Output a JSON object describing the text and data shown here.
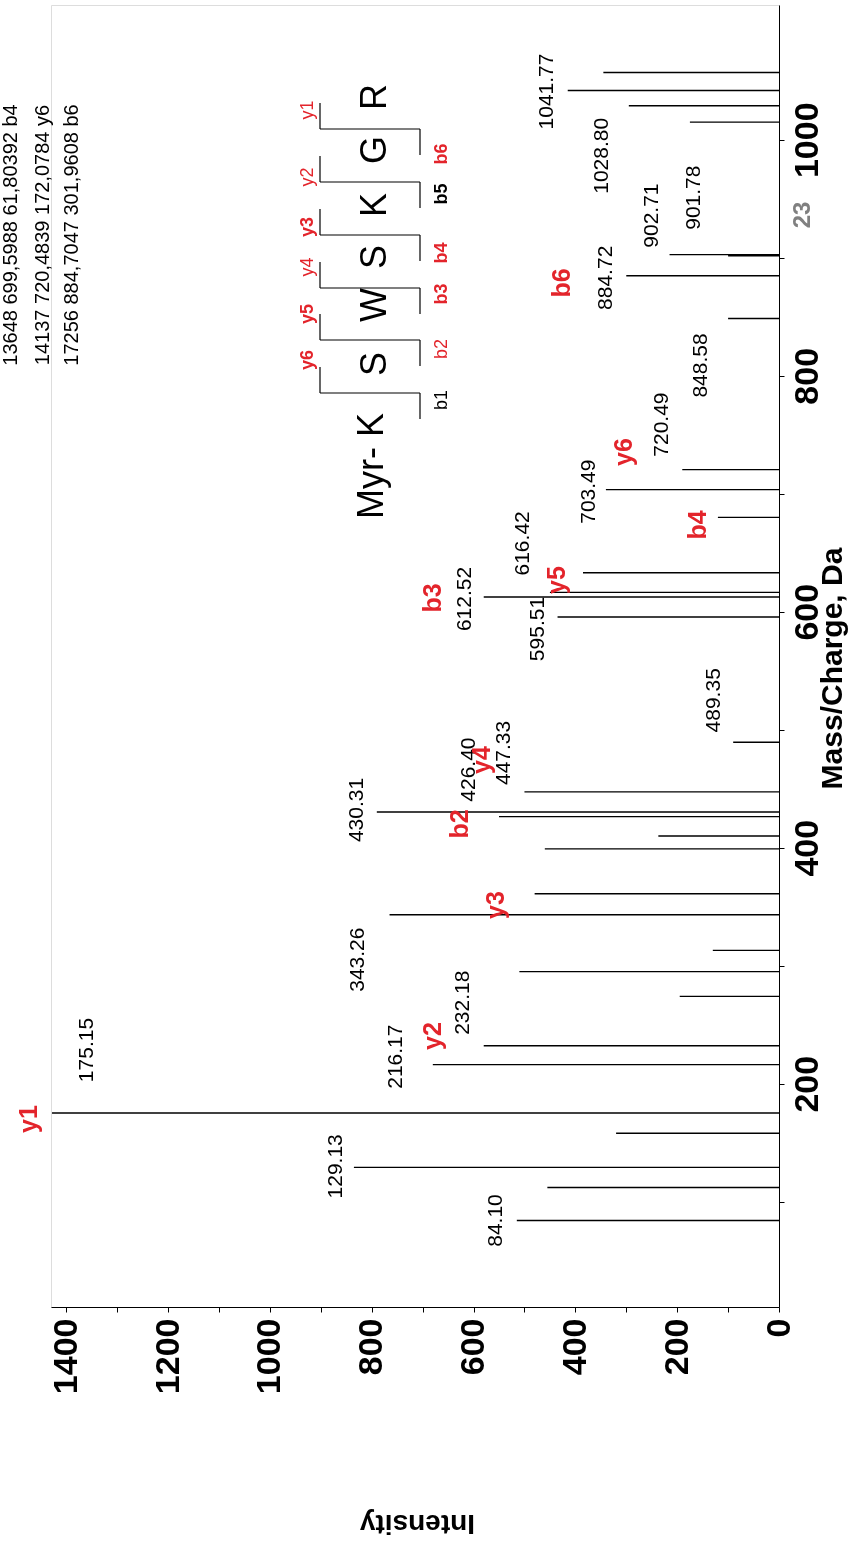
{
  "chart_data": {
    "type": "bar",
    "orientation": "horizontal",
    "xlabel": "Intensity",
    "ylabel": "Mass/Charge, Da",
    "x": [
      84.1,
      112,
      129.13,
      158,
      175.15,
      216.17,
      232.18,
      274,
      295,
      313,
      343.26,
      361,
      399,
      410,
      426.4,
      430.31,
      447.33,
      489.35,
      595.51,
      612.52,
      616.42,
      633,
      680,
      703.49,
      720.49,
      848.58,
      884.72,
      901.78,
      902.71,
      1015,
      1028.8,
      1041.77,
      1057
    ],
    "series": [
      {
        "color": "#000000",
        "values": [
          515,
          455,
          835,
          320,
          1428,
          680,
          580,
          195,
          510,
          130,
          765,
          480,
          460,
          237,
          550,
          790,
          500,
          90,
          435,
          580,
          450,
          385,
          120,
          340,
          190,
          100,
          300,
          100,
          215,
          175,
          295,
          415,
          345
        ]
      }
    ],
    "xlim": [
      1430,
      0
    ],
    "xticks": [
      0,
      {
        "value": 100,
        "label": null
      },
      200,
      {
        "value": 300,
        "label": null
      },
      400,
      {
        "value": 500,
        "label": null
      },
      600,
      {
        "value": 700,
        "label": null
      },
      800,
      {
        "value": 900,
        "label": null
      },
      1000,
      {
        "value": 1100,
        "label": null
      },
      1200,
      {
        "value": 1300,
        "label": null
      },
      1400
    ],
    "ylim": [
      15,
      1110
    ],
    "yticks": [
      {
        "value": 100,
        "label": null
      },
      200,
      {
        "value": 300,
        "label": null
      },
      400,
      {
        "value": 500,
        "label": null
      },
      600,
      {
        "value": 700,
        "label": null
      },
      800,
      {
        "value": 900,
        "label": null
      },
      1000
    ],
    "annotations": [
      {
        "text": "84.10",
        "x": 515,
        "y": 84.1
      },
      {
        "text": "129.13",
        "x": 835,
        "y": 129.13
      },
      {
        "text": "175.15",
        "x": 1428,
        "y": 175.15
      },
      {
        "text": "216.17",
        "x": 680,
        "y": 216.17
      },
      {
        "text": "232.18",
        "x": 580,
        "y": 232.18
      },
      {
        "text": "343.26",
        "x": 765,
        "y": 343.26
      },
      {
        "text": "426.40",
        "x": 550,
        "y": 426.4
      },
      {
        "text": "430.31",
        "x": 790,
        "y": 430.31
      },
      {
        "text": "447.33",
        "x": 500,
        "y": 447.33
      },
      {
        "text": "489.35",
        "x": 90,
        "y": 489.35
      },
      {
        "text": "595.51",
        "x": 435,
        "y": 595.51
      },
      {
        "text": "612.52",
        "x": 580,
        "y": 612.52
      },
      {
        "text": "616.42",
        "x": 450,
        "y": 616.42
      },
      {
        "text": "703.49",
        "x": 340,
        "y": 703.49
      },
      {
        "text": "720.49",
        "x": 190,
        "y": 720.49
      },
      {
        "text": "848.58",
        "x": 100,
        "y": 848.58
      },
      {
        "text": "884.72",
        "x": 300,
        "y": 884.72
      },
      {
        "text": "901.78",
        "x": 100,
        "y": 901.78
      },
      {
        "text": "902.71",
        "x": 215,
        "y": 902.71
      },
      {
        "text": "1028.80",
        "x": 295,
        "y": 1028.8
      },
      {
        "text": "1041.77",
        "x": 415,
        "y": 1041.77
      },
      "y1",
      "y2",
      "y3",
      "b2",
      "y4",
      "b3",
      "y5",
      "b4",
      "y6",
      "b6",
      "13648 699,5988 61,80392 b4",
      "14137 720,4839 172,0784 y6",
      "17256 884,7047 301,9608 b6",
      "23",
      "Myr- K",
      "S",
      "W",
      "S",
      "K",
      "G",
      "R",
      "b1",
      "b2",
      "b3",
      "b4",
      "b5",
      "b6",
      "y1",
      "y2",
      "y3",
      "y4",
      "y5",
      "y6"
    ]
  }
}
